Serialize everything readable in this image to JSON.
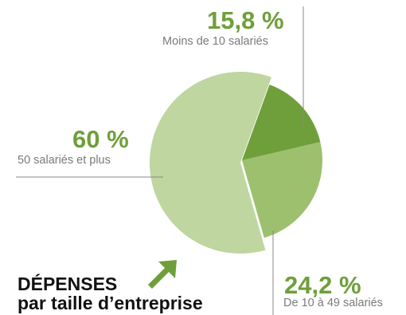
{
  "chart_data": {
    "type": "pie",
    "title": "DÉPENSES",
    "subtitle": "par taille d’entreprise",
    "slices": [
      {
        "label": "Moins de 10 salariés",
        "value": 15.8,
        "value_label": "15,8 %",
        "color": "#6f9f3a"
      },
      {
        "label": "De 10 à 49 salariés",
        "value": 24.2,
        "value_label": "24,2 %",
        "color": "#9cc06e"
      },
      {
        "label": "50 salariés et plus",
        "value": 60,
        "value_label": "60 %",
        "color": "#bfd6a0"
      }
    ],
    "legend": "none"
  },
  "colors": {
    "label_green": "#6f9f3a",
    "arrow_green": "#6f9f3a",
    "leader_line": "#888888"
  },
  "icons": {
    "title_arrow": "arrow-up-right-icon"
  }
}
